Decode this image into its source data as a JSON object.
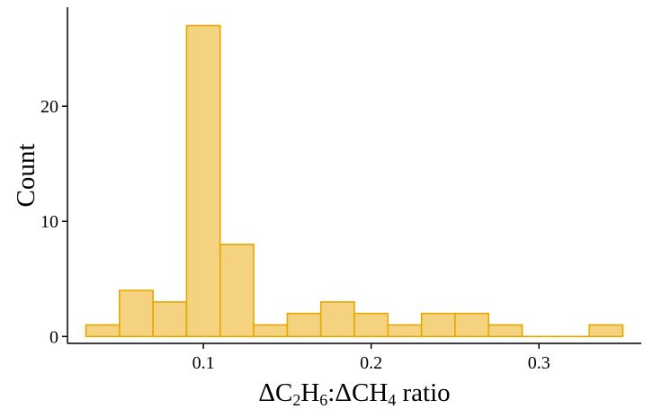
{
  "chart_data": {
    "type": "bar",
    "histogram": true,
    "xlabel": "ΔC2H6:ΔCH4 ratio",
    "xlabel_parts": [
      {
        "text": "ΔC",
        "sub": false
      },
      {
        "text": "2",
        "sub": true
      },
      {
        "text": "H",
        "sub": false
      },
      {
        "text": "6",
        "sub": true
      },
      {
        "text": ":ΔCH",
        "sub": false
      },
      {
        "text": "4",
        "sub": true
      },
      {
        "text": " ratio",
        "sub": false
      }
    ],
    "ylabel": "Count",
    "bin_width": 0.02,
    "bins": [
      {
        "x": 0.04,
        "count": 1
      },
      {
        "x": 0.06,
        "count": 4
      },
      {
        "x": 0.08,
        "count": 3
      },
      {
        "x": 0.1,
        "count": 27
      },
      {
        "x": 0.12,
        "count": 8
      },
      {
        "x": 0.14,
        "count": 1
      },
      {
        "x": 0.16,
        "count": 2
      },
      {
        "x": 0.18,
        "count": 3
      },
      {
        "x": 0.2,
        "count": 2
      },
      {
        "x": 0.22,
        "count": 1
      },
      {
        "x": 0.24,
        "count": 2
      },
      {
        "x": 0.26,
        "count": 2
      },
      {
        "x": 0.28,
        "count": 1
      },
      {
        "x": 0.3,
        "count": 0
      },
      {
        "x": 0.32,
        "count": 0
      },
      {
        "x": 0.34,
        "count": 1
      }
    ],
    "xlim": [
      0.019,
      0.361
    ],
    "ylim": [
      -0.6,
      28.6
    ],
    "xticks": [
      0.1,
      0.2,
      0.3
    ],
    "xtick_labels": [
      "0.1",
      "0.2",
      "0.3"
    ],
    "yticks": [
      0,
      10,
      20
    ],
    "ytick_labels": [
      "0",
      "10",
      "20"
    ],
    "grid": false,
    "fill_color": "#f5d27f",
    "edge_color": "#e6a800"
  }
}
